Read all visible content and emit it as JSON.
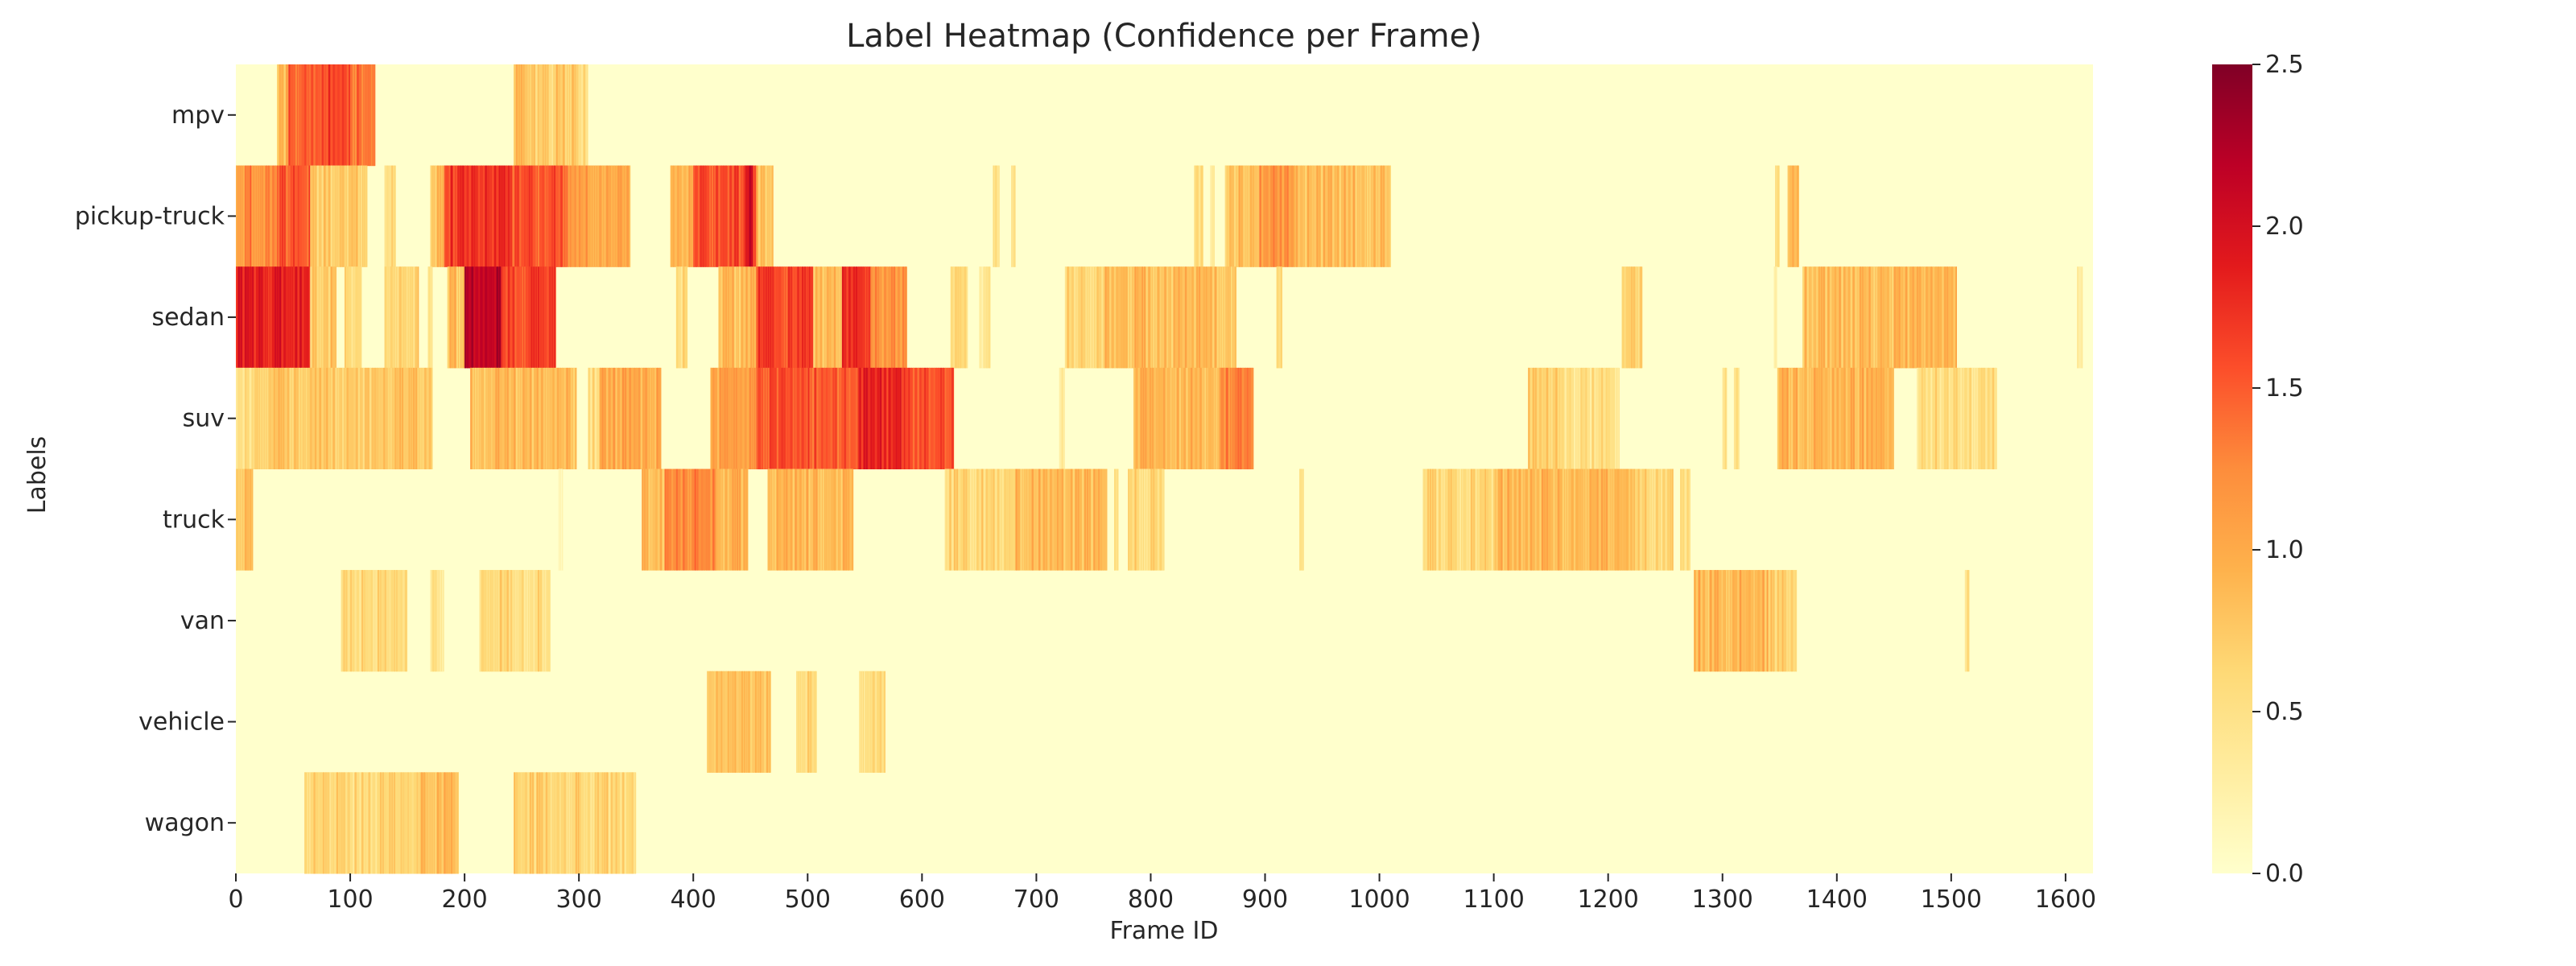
{
  "chart_data": {
    "type": "heatmap",
    "title": "Label Heatmap (Confidence per Frame)",
    "xlabel": "Frame ID",
    "ylabel": "Labels",
    "xlim": [
      0,
      1624
    ],
    "x_ticks": [
      0,
      100,
      200,
      300,
      400,
      500,
      600,
      700,
      800,
      900,
      1000,
      1100,
      1200,
      1300,
      1400,
      1500,
      1600
    ],
    "rows": [
      "mpv",
      "pickup-truck",
      "sedan",
      "suv",
      "truck",
      "van",
      "vehicle",
      "wagon"
    ],
    "colorbar": {
      "range": [
        0,
        2.5
      ],
      "ticks": [
        0.0,
        0.5,
        1.0,
        1.5,
        2.0,
        2.5
      ],
      "tick_labels": [
        "0.0",
        "0.5",
        "1.0",
        "1.5",
        "2.0",
        "2.5"
      ],
      "colormap": "YlOrRd",
      "stops": [
        "#ffffcc",
        "#ffeda0",
        "#fed976",
        "#feb24c",
        "#fd8d3c",
        "#fc4e2a",
        "#e31a1c",
        "#bd0026",
        "#800026"
      ]
    },
    "background_value": 0.0,
    "segments": {
      "mpv": [
        [
          36,
          46,
          0.9
        ],
        [
          46,
          75,
          1.5
        ],
        [
          75,
          100,
          1.6
        ],
        [
          100,
          122,
          1.4
        ],
        [
          243,
          262,
          0.8
        ],
        [
          262,
          280,
          0.65
        ],
        [
          280,
          298,
          0.75
        ],
        [
          298,
          308,
          0.55
        ]
      ],
      "pickup-truck": [
        [
          0,
          12,
          1.15
        ],
        [
          12,
          38,
          1.25
        ],
        [
          38,
          65,
          1.5
        ],
        [
          65,
          115,
          0.75
        ],
        [
          130,
          140,
          0.5
        ],
        [
          170,
          182,
          0.8
        ],
        [
          182,
          240,
          1.7
        ],
        [
          240,
          290,
          1.55
        ],
        [
          290,
          345,
          1.05
        ],
        [
          380,
          400,
          0.9
        ],
        [
          400,
          455,
          1.6
        ],
        [
          445,
          452,
          2.0
        ],
        [
          455,
          470,
          0.8
        ],
        [
          662,
          668,
          0.4
        ],
        [
          678,
          682,
          0.4
        ],
        [
          838,
          846,
          0.6
        ],
        [
          852,
          856,
          0.4
        ],
        [
          865,
          895,
          0.8
        ],
        [
          895,
          925,
          1.15
        ],
        [
          925,
          1010,
          0.85
        ],
        [
          1346,
          1350,
          0.5
        ],
        [
          1357,
          1367,
          0.85
        ]
      ],
      "sedan": [
        [
          0,
          65,
          1.85
        ],
        [
          65,
          88,
          0.75
        ],
        [
          95,
          110,
          0.6
        ],
        [
          130,
          135,
          0.6
        ],
        [
          135,
          160,
          0.7
        ],
        [
          168,
          172,
          0.6
        ],
        [
          185,
          200,
          0.85
        ],
        [
          200,
          232,
          2.15
        ],
        [
          232,
          280,
          1.6
        ],
        [
          385,
          395,
          0.6
        ],
        [
          422,
          455,
          0.85
        ],
        [
          455,
          505,
          1.6
        ],
        [
          505,
          530,
          0.85
        ],
        [
          530,
          555,
          1.75
        ],
        [
          555,
          587,
          1.15
        ],
        [
          625,
          640,
          0.6
        ],
        [
          650,
          660,
          0.4
        ],
        [
          725,
          760,
          0.65
        ],
        [
          760,
          820,
          0.85
        ],
        [
          820,
          875,
          0.85
        ],
        [
          910,
          915,
          0.6
        ],
        [
          1212,
          1230,
          0.7
        ],
        [
          1345,
          1348,
          0.4
        ],
        [
          1370,
          1450,
          0.85
        ],
        [
          1450,
          1505,
          0.9
        ],
        [
          1610,
          1615,
          0.3
        ]
      ],
      "suv": [
        [
          0,
          15,
          0.5
        ],
        [
          15,
          172,
          0.75
        ],
        [
          205,
          298,
          0.85
        ],
        [
          308,
          318,
          0.55
        ],
        [
          318,
          372,
          1.0
        ],
        [
          415,
          455,
          1.05
        ],
        [
          455,
          500,
          1.6
        ],
        [
          500,
          545,
          1.5
        ],
        [
          545,
          582,
          1.8
        ],
        [
          582,
          628,
          1.55
        ],
        [
          720,
          725,
          0.3
        ],
        [
          785,
          860,
          0.9
        ],
        [
          860,
          890,
          1.3
        ],
        [
          1130,
          1160,
          0.7
        ],
        [
          1160,
          1210,
          0.5
        ],
        [
          1300,
          1304,
          0.4
        ],
        [
          1310,
          1315,
          0.5
        ],
        [
          1348,
          1450,
          0.9
        ],
        [
          1470,
          1540,
          0.55
        ]
      ],
      "truck": [
        [
          0,
          15,
          0.8
        ],
        [
          282,
          286,
          0.3
        ],
        [
          355,
          375,
          0.85
        ],
        [
          375,
          420,
          1.25
        ],
        [
          420,
          448,
          0.9
        ],
        [
          465,
          540,
          0.9
        ],
        [
          620,
          680,
          0.6
        ],
        [
          680,
          762,
          0.85
        ],
        [
          768,
          772,
          0.4
        ],
        [
          780,
          812,
          0.6
        ],
        [
          930,
          934,
          0.5
        ],
        [
          1038,
          1100,
          0.6
        ],
        [
          1100,
          1220,
          0.9
        ],
        [
          1220,
          1257,
          0.65
        ],
        [
          1263,
          1272,
          0.5
        ]
      ],
      "van": [
        [
          92,
          150,
          0.55
        ],
        [
          170,
          182,
          0.5
        ],
        [
          213,
          240,
          0.65
        ],
        [
          240,
          275,
          0.55
        ],
        [
          1275,
          1340,
          0.9
        ],
        [
          1340,
          1365,
          0.65
        ],
        [
          1512,
          1516,
          0.5
        ]
      ],
      "vehicle": [
        [
          412,
          468,
          0.75
        ],
        [
          490,
          508,
          0.6
        ],
        [
          545,
          568,
          0.6
        ]
      ],
      "wagon": [
        [
          60,
          100,
          0.65
        ],
        [
          100,
          160,
          0.6
        ],
        [
          160,
          195,
          0.85
        ],
        [
          243,
          300,
          0.65
        ],
        [
          300,
          350,
          0.6
        ]
      ]
    }
  }
}
